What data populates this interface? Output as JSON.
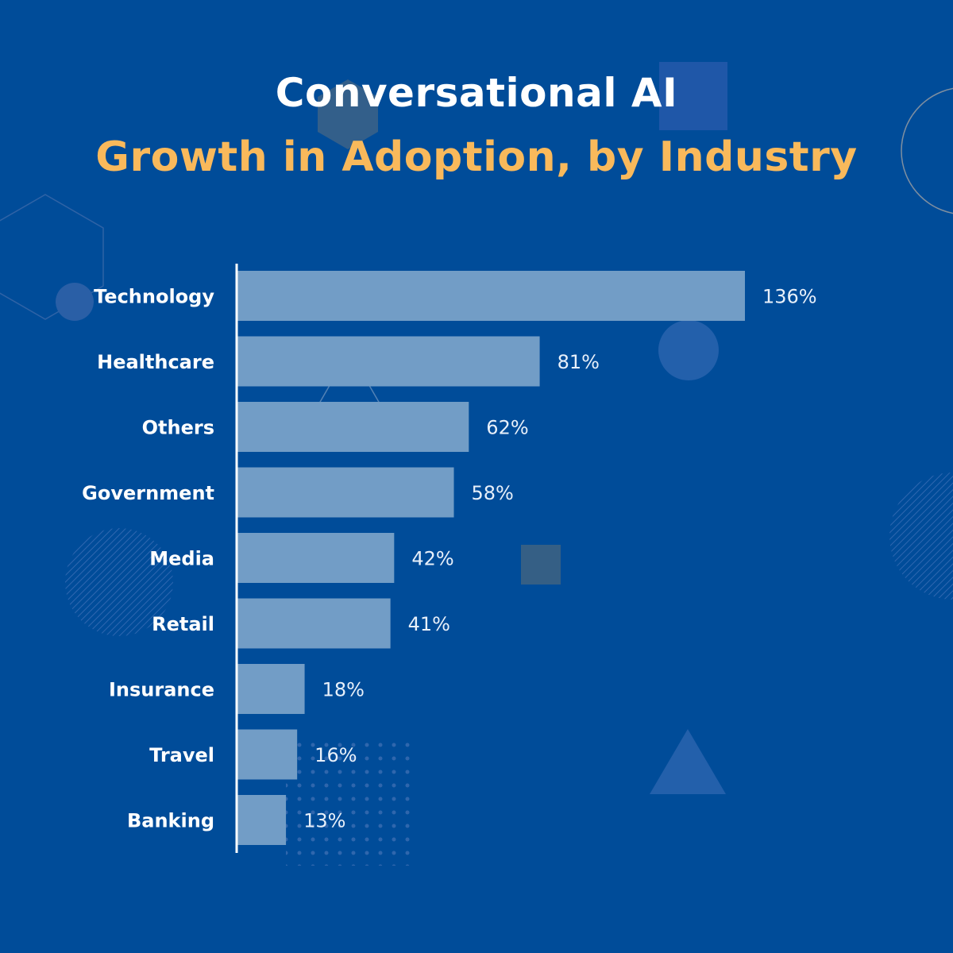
{
  "header": {
    "title": "Conversational AI",
    "subtitle": "Growth in Adoption, by Industry"
  },
  "colors": {
    "background": "#004c99",
    "bar": "#729dc6",
    "title": "#ffffff",
    "subtitle": "#f9b95b"
  },
  "chart_data": {
    "type": "bar",
    "orientation": "horizontal",
    "title": "",
    "xlabel": "",
    "ylabel": "",
    "categories": [
      "Technology",
      "Healthcare",
      "Others",
      "Government",
      "Media",
      "Retail",
      "Insurance",
      "Travel",
      "Banking"
    ],
    "values": [
      136,
      81,
      62,
      58,
      42,
      41,
      18,
      16,
      13
    ],
    "value_labels": [
      "136%",
      "81%",
      "62%",
      "58%",
      "42%",
      "41%",
      "18%",
      "16%",
      "13%"
    ],
    "unit": "%",
    "xlim": [
      0,
      136
    ],
    "grid": false,
    "legend": "none"
  }
}
